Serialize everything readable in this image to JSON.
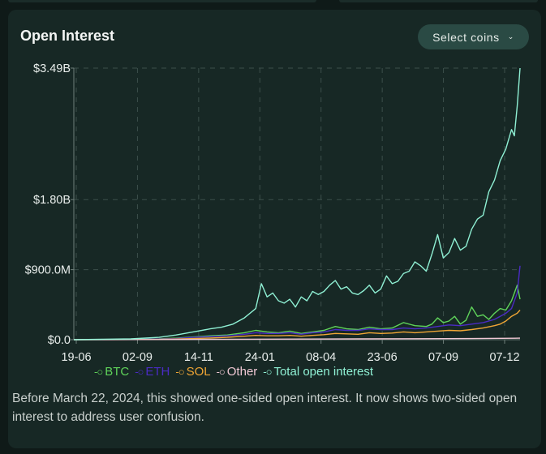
{
  "card": {
    "title": "Open Interest",
    "select_label": "Select coins",
    "note": "Before March 22, 2024, this showed one-sided open interest. It now shows two-sided open interest to address user confusion."
  },
  "chart_data": {
    "type": "line",
    "title": "Open Interest",
    "ylabel": "",
    "xlabel": "",
    "ylim": [
      0,
      3.49
    ],
    "y_unit": "billion USD",
    "y_ticks": [
      {
        "value": 0.0,
        "label": "$0.0"
      },
      {
        "value": 0.9,
        "label": "$900.0M"
      },
      {
        "value": 1.8,
        "label": "$1.80B"
      },
      {
        "value": 3.49,
        "label": "$3.49B"
      }
    ],
    "x_ticks": [
      "19-06",
      "02-09",
      "14-11",
      "24-01",
      "08-04",
      "23-06",
      "07-09",
      "07-12"
    ],
    "x_range_weeks": [
      0,
      78.5
    ],
    "grid": true,
    "legend": "bottom",
    "series": [
      {
        "name": "BTC",
        "color": "#5fd35a",
        "x": [
          0,
          5,
          10,
          15,
          18,
          21,
          24,
          27,
          30,
          32,
          34,
          36,
          38,
          40,
          42,
          44,
          46,
          48,
          50,
          52,
          54,
          56,
          58,
          60,
          62,
          63,
          64,
          65,
          66,
          67,
          68,
          69,
          70,
          71,
          72,
          73,
          74,
          75,
          76,
          77,
          78,
          78.5
        ],
        "y": [
          0,
          0.002,
          0.005,
          0.01,
          0.02,
          0.035,
          0.05,
          0.06,
          0.09,
          0.12,
          0.1,
          0.09,
          0.11,
          0.08,
          0.1,
          0.12,
          0.17,
          0.14,
          0.13,
          0.16,
          0.14,
          0.15,
          0.22,
          0.18,
          0.17,
          0.2,
          0.28,
          0.22,
          0.24,
          0.3,
          0.2,
          0.25,
          0.42,
          0.3,
          0.32,
          0.26,
          0.34,
          0.4,
          0.38,
          0.5,
          0.7,
          0.52
        ]
      },
      {
        "name": "ETH",
        "color": "#4a2bc4",
        "x": [
          0,
          5,
          10,
          15,
          18,
          21,
          24,
          27,
          30,
          32,
          34,
          36,
          38,
          40,
          42,
          44,
          46,
          48,
          50,
          52,
          54,
          56,
          58,
          60,
          62,
          64,
          66,
          68,
          70,
          72,
          74,
          75,
          76,
          77,
          78,
          78.5
        ],
        "y": [
          0,
          0.001,
          0.003,
          0.008,
          0.015,
          0.03,
          0.04,
          0.05,
          0.07,
          0.09,
          0.08,
          0.08,
          0.09,
          0.07,
          0.09,
          0.1,
          0.13,
          0.12,
          0.12,
          0.14,
          0.13,
          0.13,
          0.15,
          0.14,
          0.15,
          0.17,
          0.19,
          0.18,
          0.2,
          0.22,
          0.26,
          0.3,
          0.34,
          0.4,
          0.6,
          0.95
        ]
      },
      {
        "name": "SOL",
        "color": "#f0a635",
        "x": [
          0,
          5,
          10,
          15,
          18,
          21,
          24,
          27,
          30,
          32,
          34,
          36,
          38,
          40,
          42,
          44,
          46,
          48,
          50,
          52,
          54,
          56,
          58,
          60,
          62,
          64,
          66,
          68,
          70,
          72,
          74,
          75,
          76,
          77,
          78,
          78.5
        ],
        "y": [
          0,
          0.001,
          0.002,
          0.004,
          0.008,
          0.015,
          0.022,
          0.03,
          0.045,
          0.055,
          0.05,
          0.05,
          0.055,
          0.045,
          0.055,
          0.065,
          0.08,
          0.075,
          0.07,
          0.09,
          0.08,
          0.085,
          0.1,
          0.09,
          0.1,
          0.11,
          0.12,
          0.115,
          0.13,
          0.15,
          0.18,
          0.2,
          0.24,
          0.3,
          0.34,
          0.38
        ]
      },
      {
        "name": "Other",
        "color": "#f0c8d4",
        "x": [
          0,
          20,
          30,
          40,
          50,
          60,
          70,
          78.5
        ],
        "y": [
          0,
          0.003,
          0.006,
          0.008,
          0.01,
          0.012,
          0.015,
          0.02
        ]
      },
      {
        "name": "Total open interest",
        "color": "#8ff0d4",
        "x": [
          0,
          5,
          10,
          15,
          18,
          21,
          24,
          26,
          28,
          30,
          32,
          33,
          34,
          35,
          36,
          37,
          38,
          39,
          40,
          41,
          42,
          43,
          44,
          45,
          46,
          47,
          48,
          49,
          50,
          51,
          52,
          53,
          54,
          55,
          56,
          57,
          58,
          59,
          60,
          61,
          62,
          63,
          64,
          65,
          66,
          67,
          68,
          69,
          70,
          71,
          72,
          73,
          74,
          75,
          76,
          77,
          77.5,
          78,
          78.5
        ],
        "y": [
          0,
          0.005,
          0.01,
          0.03,
          0.06,
          0.1,
          0.14,
          0.16,
          0.2,
          0.28,
          0.4,
          0.72,
          0.55,
          0.6,
          0.5,
          0.47,
          0.52,
          0.42,
          0.55,
          0.5,
          0.62,
          0.58,
          0.62,
          0.7,
          0.76,
          0.65,
          0.68,
          0.6,
          0.58,
          0.63,
          0.7,
          0.6,
          0.65,
          0.82,
          0.72,
          0.75,
          0.85,
          0.88,
          1.0,
          0.95,
          0.88,
          1.1,
          1.35,
          1.05,
          1.12,
          1.3,
          1.15,
          1.2,
          1.42,
          1.55,
          1.6,
          1.9,
          2.05,
          2.3,
          2.45,
          2.7,
          2.62,
          3.0,
          3.49
        ]
      }
    ]
  }
}
